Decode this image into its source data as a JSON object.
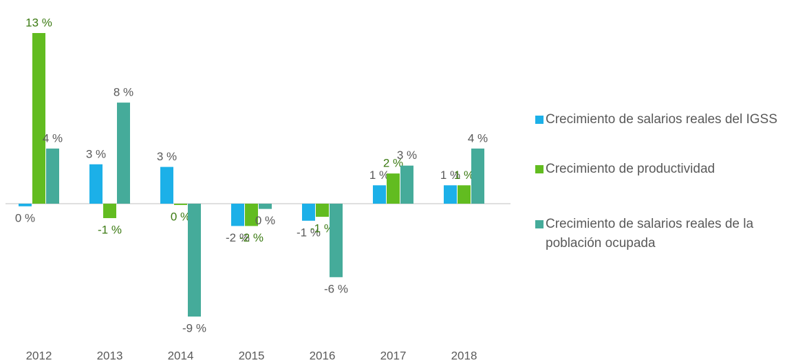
{
  "chart_data": {
    "type": "bar",
    "categories": [
      "2012",
      "2013",
      "2014",
      "2015",
      "2016",
      "2017",
      "2018"
    ],
    "series": [
      {
        "name": "Crecimiento de salarios reales del IGSS",
        "color": "#1cb0e8",
        "label_color": "#595959",
        "values": [
          -0.2,
          3.0,
          2.8,
          -1.7,
          -1.3,
          1.4,
          1.4
        ],
        "value_labels": [
          "0 %",
          "3 %",
          "3 %",
          "-2 %",
          "-1 %",
          "1 %",
          "1 %"
        ]
      },
      {
        "name": "Crecimiento de productividad",
        "color": "#62bc20",
        "label_color": "#3b7a12",
        "values": [
          13,
          -1.1,
          -0.1,
          -1.7,
          -1.0,
          2.3,
          1.4
        ],
        "value_labels": [
          "13 %",
          "-1 %",
          "0 %",
          "-2 %",
          "-1 %",
          "2 %",
          "1 %"
        ]
      },
      {
        "name": "Crecimiento de salarios reales de la población ocupada",
        "color": "#45ab9a",
        "label_color": "#595959",
        "values": [
          4.2,
          7.7,
          -8.6,
          -0.4,
          -5.6,
          2.9,
          4.2
        ],
        "value_labels": [
          "4 %",
          "8 %",
          "-9 %",
          "0 %",
          "-6 %",
          "3 %",
          "4 %"
        ]
      }
    ]
  }
}
